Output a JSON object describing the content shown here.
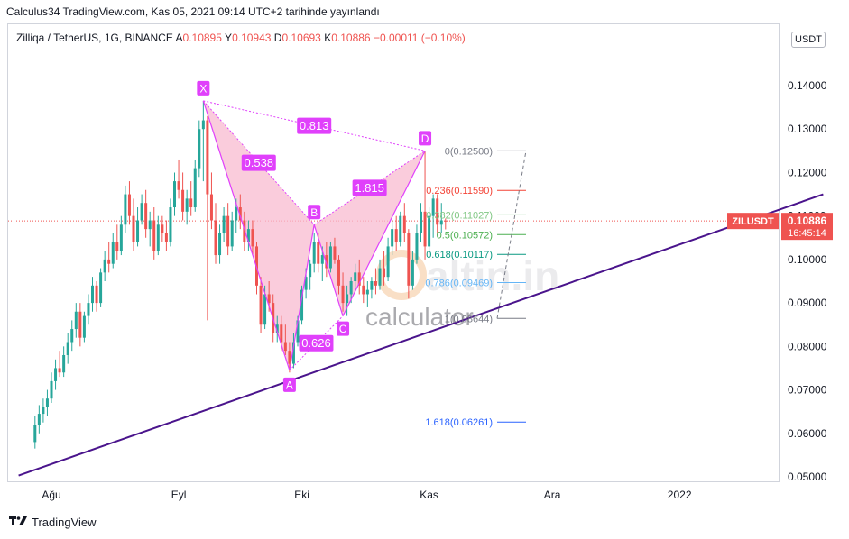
{
  "header": {
    "published": "Calculus34 TradingView.com, Kas 05, 2021 09:14 UTC+2 tarihinde yayınlandı"
  },
  "legend": {
    "symbol": "Zilliqa / TetherUS, 1G, BINANCE",
    "open_label": "A",
    "open": "0.10895",
    "high_label": "Y",
    "high": "0.10943",
    "low_label": "D",
    "low": "0.10693",
    "close_label": "K",
    "close": "0.10886",
    "change": "−0.00011 (−0.10%)"
  },
  "currency_button": "USDT",
  "price_tag": {
    "symbol": "ZILUSDT",
    "price": "0.10886",
    "countdown": "16:45:14"
  },
  "footer": {
    "brand": "TradingView"
  },
  "watermark": {
    "line1": "altin.in",
    "line2": "calculator"
  },
  "colors": {
    "up": "#26a69a",
    "down": "#ef5350",
    "pattern": "#e040fb",
    "trend": "#4a148c",
    "fill": "#f8bbd0"
  },
  "chart_data": {
    "type": "candlestick",
    "symbol": "ZILUSDT",
    "timeframe": "1D",
    "y_range": [
      0.048,
      0.152
    ],
    "y_ticks": [
      "0.14000",
      "0.13000",
      "0.12000",
      "0.11000",
      "0.10000",
      "0.09000",
      "0.08000",
      "0.07000",
      "0.06000",
      "0.05000"
    ],
    "x_ticks": [
      {
        "label": "Ağu",
        "date": "2021-08-01"
      },
      {
        "label": "Eyl",
        "date": "2021-09-01"
      },
      {
        "label": "Eki",
        "date": "2021-10-01"
      },
      {
        "label": "Kas",
        "date": "2021-11-01"
      },
      {
        "label": "Ara",
        "date": "2021-12-01"
      },
      {
        "label": "2022",
        "date": "2022-01-01"
      }
    ],
    "current_price": 0.10886,
    "candles": [
      {
        "date": "2021-07-28",
        "o": 0.058,
        "h": 0.064,
        "l": 0.0565,
        "c": 0.062
      },
      {
        "date": "2021-07-29",
        "o": 0.062,
        "h": 0.0665,
        "l": 0.06,
        "c": 0.0645
      },
      {
        "date": "2021-07-30",
        "o": 0.0645,
        "h": 0.068,
        "l": 0.0625,
        "c": 0.066
      },
      {
        "date": "2021-07-31",
        "o": 0.066,
        "h": 0.07,
        "l": 0.064,
        "c": 0.068
      },
      {
        "date": "2021-08-01",
        "o": 0.068,
        "h": 0.074,
        "l": 0.067,
        "c": 0.072
      },
      {
        "date": "2021-08-02",
        "o": 0.072,
        "h": 0.077,
        "l": 0.07,
        "c": 0.075
      },
      {
        "date": "2021-08-03",
        "o": 0.075,
        "h": 0.079,
        "l": 0.073,
        "c": 0.074
      },
      {
        "date": "2021-08-04",
        "o": 0.074,
        "h": 0.08,
        "l": 0.073,
        "c": 0.078
      },
      {
        "date": "2021-08-05",
        "o": 0.078,
        "h": 0.083,
        "l": 0.076,
        "c": 0.081
      },
      {
        "date": "2021-08-06",
        "o": 0.081,
        "h": 0.086,
        "l": 0.079,
        "c": 0.084
      },
      {
        "date": "2021-08-07",
        "o": 0.084,
        "h": 0.09,
        "l": 0.082,
        "c": 0.088
      },
      {
        "date": "2021-08-08",
        "o": 0.088,
        "h": 0.09,
        "l": 0.08,
        "c": 0.082
      },
      {
        "date": "2021-08-09",
        "o": 0.082,
        "h": 0.088,
        "l": 0.081,
        "c": 0.087
      },
      {
        "date": "2021-08-10",
        "o": 0.087,
        "h": 0.092,
        "l": 0.085,
        "c": 0.09
      },
      {
        "date": "2021-08-11",
        "o": 0.09,
        "h": 0.096,
        "l": 0.088,
        "c": 0.094
      },
      {
        "date": "2021-08-12",
        "o": 0.094,
        "h": 0.095,
        "l": 0.088,
        "c": 0.09
      },
      {
        "date": "2021-08-13",
        "o": 0.09,
        "h": 0.098,
        "l": 0.089,
        "c": 0.097
      },
      {
        "date": "2021-08-14",
        "o": 0.097,
        "h": 0.102,
        "l": 0.095,
        "c": 0.1
      },
      {
        "date": "2021-08-15",
        "o": 0.1,
        "h": 0.104,
        "l": 0.097,
        "c": 0.099
      },
      {
        "date": "2021-08-16",
        "o": 0.099,
        "h": 0.106,
        "l": 0.098,
        "c": 0.104
      },
      {
        "date": "2021-08-17",
        "o": 0.104,
        "h": 0.108,
        "l": 0.1,
        "c": 0.102
      },
      {
        "date": "2021-08-18",
        "o": 0.102,
        "h": 0.11,
        "l": 0.101,
        "c": 0.108
      },
      {
        "date": "2021-08-19",
        "o": 0.108,
        "h": 0.117,
        "l": 0.106,
        "c": 0.115
      },
      {
        "date": "2021-08-20",
        "o": 0.115,
        "h": 0.118,
        "l": 0.108,
        "c": 0.11
      },
      {
        "date": "2021-08-21",
        "o": 0.11,
        "h": 0.114,
        "l": 0.102,
        "c": 0.104
      },
      {
        "date": "2021-08-22",
        "o": 0.104,
        "h": 0.112,
        "l": 0.103,
        "c": 0.109
      },
      {
        "date": "2021-08-23",
        "o": 0.109,
        "h": 0.115,
        "l": 0.108,
        "c": 0.113
      },
      {
        "date": "2021-08-24",
        "o": 0.113,
        "h": 0.116,
        "l": 0.105,
        "c": 0.107
      },
      {
        "date": "2021-08-25",
        "o": 0.107,
        "h": 0.111,
        "l": 0.103,
        "c": 0.109
      },
      {
        "date": "2021-08-26",
        "o": 0.109,
        "h": 0.112,
        "l": 0.1,
        "c": 0.102
      },
      {
        "date": "2021-08-27",
        "o": 0.102,
        "h": 0.11,
        "l": 0.101,
        "c": 0.108
      },
      {
        "date": "2021-08-28",
        "o": 0.108,
        "h": 0.11,
        "l": 0.104,
        "c": 0.106
      },
      {
        "date": "2021-08-29",
        "o": 0.106,
        "h": 0.109,
        "l": 0.102,
        "c": 0.104
      },
      {
        "date": "2021-08-30",
        "o": 0.104,
        "h": 0.114,
        "l": 0.103,
        "c": 0.112
      },
      {
        "date": "2021-08-31",
        "o": 0.112,
        "h": 0.12,
        "l": 0.11,
        "c": 0.118
      },
      {
        "date": "2021-09-01",
        "o": 0.118,
        "h": 0.123,
        "l": 0.114,
        "c": 0.116
      },
      {
        "date": "2021-09-02",
        "o": 0.116,
        "h": 0.12,
        "l": 0.109,
        "c": 0.111
      },
      {
        "date": "2021-09-03",
        "o": 0.111,
        "h": 0.116,
        "l": 0.108,
        "c": 0.114
      },
      {
        "date": "2021-09-04",
        "o": 0.114,
        "h": 0.118,
        "l": 0.11,
        "c": 0.112
      },
      {
        "date": "2021-09-05",
        "o": 0.112,
        "h": 0.123,
        "l": 0.111,
        "c": 0.121
      },
      {
        "date": "2021-09-06",
        "o": 0.121,
        "h": 0.132,
        "l": 0.119,
        "c": 0.13
      },
      {
        "date": "2021-09-07",
        "o": 0.13,
        "h": 0.1365,
        "l": 0.118,
        "c": 0.132
      },
      {
        "date": "2021-09-08",
        "o": 0.132,
        "h": 0.133,
        "l": 0.086,
        "c": 0.115
      },
      {
        "date": "2021-09-09",
        "o": 0.115,
        "h": 0.12,
        "l": 0.107,
        "c": 0.109
      },
      {
        "date": "2021-09-10",
        "o": 0.109,
        "h": 0.113,
        "l": 0.099,
        "c": 0.101
      },
      {
        "date": "2021-09-11",
        "o": 0.101,
        "h": 0.108,
        "l": 0.099,
        "c": 0.106
      },
      {
        "date": "2021-09-12",
        "o": 0.106,
        "h": 0.112,
        "l": 0.104,
        "c": 0.11
      },
      {
        "date": "2021-09-13",
        "o": 0.11,
        "h": 0.113,
        "l": 0.101,
        "c": 0.103
      },
      {
        "date": "2021-09-14",
        "o": 0.103,
        "h": 0.111,
        "l": 0.102,
        "c": 0.109
      },
      {
        "date": "2021-09-15",
        "o": 0.109,
        "h": 0.114,
        "l": 0.106,
        "c": 0.112
      },
      {
        "date": "2021-09-16",
        "o": 0.112,
        "h": 0.115,
        "l": 0.107,
        "c": 0.109
      },
      {
        "date": "2021-09-17",
        "o": 0.109,
        "h": 0.111,
        "l": 0.102,
        "c": 0.104
      },
      {
        "date": "2021-09-18",
        "o": 0.104,
        "h": 0.109,
        "l": 0.102,
        "c": 0.107
      },
      {
        "date": "2021-09-19",
        "o": 0.107,
        "h": 0.109,
        "l": 0.101,
        "c": 0.103
      },
      {
        "date": "2021-09-20",
        "o": 0.103,
        "h": 0.104,
        "l": 0.092,
        "c": 0.094
      },
      {
        "date": "2021-09-21",
        "o": 0.094,
        "h": 0.096,
        "l": 0.083,
        "c": 0.085
      },
      {
        "date": "2021-09-22",
        "o": 0.085,
        "h": 0.094,
        "l": 0.084,
        "c": 0.092
      },
      {
        "date": "2021-09-23",
        "o": 0.092,
        "h": 0.095,
        "l": 0.088,
        "c": 0.09
      },
      {
        "date": "2021-09-24",
        "o": 0.09,
        "h": 0.092,
        "l": 0.081,
        "c": 0.083
      },
      {
        "date": "2021-09-25",
        "o": 0.083,
        "h": 0.087,
        "l": 0.081,
        "c": 0.085
      },
      {
        "date": "2021-09-26",
        "o": 0.085,
        "h": 0.087,
        "l": 0.079,
        "c": 0.081
      },
      {
        "date": "2021-09-27",
        "o": 0.081,
        "h": 0.085,
        "l": 0.078,
        "c": 0.079
      },
      {
        "date": "2021-09-28",
        "o": 0.079,
        "h": 0.081,
        "l": 0.074,
        "c": 0.076
      },
      {
        "date": "2021-09-29",
        "o": 0.076,
        "h": 0.083,
        "l": 0.075,
        "c": 0.081
      },
      {
        "date": "2021-09-30",
        "o": 0.081,
        "h": 0.087,
        "l": 0.08,
        "c": 0.086
      },
      {
        "date": "2021-10-01",
        "o": 0.086,
        "h": 0.094,
        "l": 0.085,
        "c": 0.093
      },
      {
        "date": "2021-10-02",
        "o": 0.093,
        "h": 0.098,
        "l": 0.091,
        "c": 0.096
      },
      {
        "date": "2021-10-03",
        "o": 0.096,
        "h": 0.1,
        "l": 0.093,
        "c": 0.099
      },
      {
        "date": "2021-10-04",
        "o": 0.099,
        "h": 0.106,
        "l": 0.097,
        "c": 0.104
      },
      {
        "date": "2021-10-05",
        "o": 0.104,
        "h": 0.106,
        "l": 0.097,
        "c": 0.099
      },
      {
        "date": "2021-10-06",
        "o": 0.099,
        "h": 0.103,
        "l": 0.095,
        "c": 0.101
      },
      {
        "date": "2021-10-07",
        "o": 0.101,
        "h": 0.104,
        "l": 0.096,
        "c": 0.098
      },
      {
        "date": "2021-10-08",
        "o": 0.098,
        "h": 0.104,
        "l": 0.097,
        "c": 0.103
      },
      {
        "date": "2021-10-09",
        "o": 0.103,
        "h": 0.105,
        "l": 0.099,
        "c": 0.1
      },
      {
        "date": "2021-10-10",
        "o": 0.1,
        "h": 0.101,
        "l": 0.092,
        "c": 0.094
      },
      {
        "date": "2021-10-11",
        "o": 0.094,
        "h": 0.097,
        "l": 0.088,
        "c": 0.09
      },
      {
        "date": "2021-10-12",
        "o": 0.09,
        "h": 0.094,
        "l": 0.087,
        "c": 0.092
      },
      {
        "date": "2021-10-13",
        "o": 0.092,
        "h": 0.096,
        "l": 0.09,
        "c": 0.095
      },
      {
        "date": "2021-10-14",
        "o": 0.095,
        "h": 0.099,
        "l": 0.093,
        "c": 0.097
      },
      {
        "date": "2021-10-15",
        "o": 0.097,
        "h": 0.1,
        "l": 0.092,
        "c": 0.094
      },
      {
        "date": "2021-10-16",
        "o": 0.094,
        "h": 0.096,
        "l": 0.09,
        "c": 0.092
      },
      {
        "date": "2021-10-17",
        "o": 0.092,
        "h": 0.095,
        "l": 0.089,
        "c": 0.093
      },
      {
        "date": "2021-10-18",
        "o": 0.093,
        "h": 0.096,
        "l": 0.091,
        "c": 0.095
      },
      {
        "date": "2021-10-19",
        "o": 0.095,
        "h": 0.098,
        "l": 0.092,
        "c": 0.094
      },
      {
        "date": "2021-10-20",
        "o": 0.094,
        "h": 0.1,
        "l": 0.093,
        "c": 0.098
      },
      {
        "date": "2021-10-21",
        "o": 0.098,
        "h": 0.102,
        "l": 0.094,
        "c": 0.096
      },
      {
        "date": "2021-10-22",
        "o": 0.096,
        "h": 0.105,
        "l": 0.095,
        "c": 0.103
      },
      {
        "date": "2021-10-23",
        "o": 0.103,
        "h": 0.109,
        "l": 0.101,
        "c": 0.107
      },
      {
        "date": "2021-10-24",
        "o": 0.107,
        "h": 0.11,
        "l": 0.102,
        "c": 0.104
      },
      {
        "date": "2021-10-25",
        "o": 0.104,
        "h": 0.111,
        "l": 0.103,
        "c": 0.11
      },
      {
        "date": "2021-10-26",
        "o": 0.11,
        "h": 0.113,
        "l": 0.104,
        "c": 0.106
      },
      {
        "date": "2021-10-27",
        "o": 0.106,
        "h": 0.107,
        "l": 0.091,
        "c": 0.094
      },
      {
        "date": "2021-10-28",
        "o": 0.094,
        "h": 0.102,
        "l": 0.093,
        "c": 0.1
      },
      {
        "date": "2021-10-29",
        "o": 0.1,
        "h": 0.108,
        "l": 0.099,
        "c": 0.106
      },
      {
        "date": "2021-10-30",
        "o": 0.106,
        "h": 0.113,
        "l": 0.104,
        "c": 0.111
      },
      {
        "date": "2021-10-31",
        "o": 0.111,
        "h": 0.125,
        "l": 0.1,
        "c": 0.103
      },
      {
        "date": "2021-11-01",
        "o": 0.103,
        "h": 0.112,
        "l": 0.101,
        "c": 0.11
      },
      {
        "date": "2021-11-02",
        "o": 0.11,
        "h": 0.115,
        "l": 0.105,
        "c": 0.114
      },
      {
        "date": "2021-11-03",
        "o": 0.114,
        "h": 0.115,
        "l": 0.106,
        "c": 0.108
      },
      {
        "date": "2021-11-04",
        "o": 0.108,
        "h": 0.113,
        "l": 0.106,
        "c": 0.109
      },
      {
        "date": "2021-11-05",
        "o": 0.10895,
        "h": 0.10943,
        "l": 0.10693,
        "c": 0.10886
      }
    ],
    "harmonic_pattern": {
      "points": [
        {
          "label": "X",
          "date": "2021-09-07",
          "price": 0.1365
        },
        {
          "label": "A",
          "date": "2021-09-28",
          "price": 0.0745
        },
        {
          "label": "B",
          "date": "2021-10-04",
          "price": 0.108
        },
        {
          "label": "C",
          "date": "2021-10-11",
          "price": 0.087
        },
        {
          "label": "D",
          "date": "2021-10-31",
          "price": 0.125
        }
      ],
      "ratios": [
        {
          "value": "0.538",
          "between": "XA-AB"
        },
        {
          "value": "0.813",
          "between": "X-D"
        },
        {
          "value": "1.815",
          "between": "BC-CD"
        },
        {
          "value": "0.626",
          "between": "AB-BC"
        }
      ]
    },
    "fib_levels": [
      {
        "ratio": "0",
        "price": "0.12500",
        "label": "0(0.12500)",
        "color": "#787b86"
      },
      {
        "ratio": "0.236",
        "price": "0.11590",
        "label": "0.236(0.11590)",
        "color": "#f44336"
      },
      {
        "ratio": "0.382",
        "price": "0.11027",
        "label": "0.382(0.11027)",
        "color": "#81c784"
      },
      {
        "ratio": "0.5",
        "price": "0.10572",
        "label": "0.5(0.10572)",
        "color": "#4caf50"
      },
      {
        "ratio": "0.618",
        "price": "0.10117",
        "label": "0.618(0.10117)",
        "color": "#089981"
      },
      {
        "ratio": "0.786",
        "price": "0.09469",
        "label": "0.786(0.09469)",
        "color": "#64b5f6"
      },
      {
        "ratio": "1",
        "price": "0.08644",
        "label": "1(0.08644)",
        "color": "#787b86"
      },
      {
        "ratio": "1.618",
        "price": "0.06261",
        "label": "1.618(0.06261)",
        "color": "#2962ff"
      }
    ],
    "trendline": {
      "start": {
        "date": "2021-07-24",
        "price": 0.0503
      },
      "end": {
        "date": "2022-02-05",
        "price": 0.115
      }
    }
  }
}
